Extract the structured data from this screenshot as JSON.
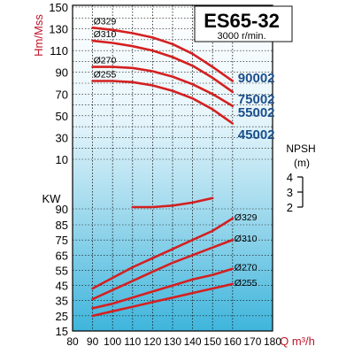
{
  "chart_data": [
    {
      "type": "line",
      "title": "ES65-32",
      "subtitle": "3000 r/min.",
      "ylabel": "Hm/Mss",
      "xlabel": "Q m³/h",
      "x_ticks": [
        80,
        90,
        100,
        110,
        120,
        130,
        140,
        150,
        160,
        170,
        180
      ],
      "y_ticks": [
        10,
        30,
        50,
        70,
        90,
        110,
        130,
        150
      ],
      "ylim": [
        0,
        150
      ],
      "xlim": [
        80,
        180
      ],
      "grid": true,
      "series": [
        {
          "name": "Ø329",
          "x": [
            90,
            100,
            110,
            120,
            130,
            140,
            150,
            160
          ],
          "y": [
            131,
            129,
            126,
            122,
            116,
            107,
            95,
            82
          ]
        },
        {
          "name": "Ø310",
          "x": [
            90,
            100,
            110,
            120,
            130,
            140,
            150,
            160
          ],
          "y": [
            119,
            117,
            114,
            110,
            104,
            96,
            85,
            72
          ]
        },
        {
          "name": "Ø270",
          "x": [
            90,
            100,
            110,
            120,
            130,
            140,
            150,
            160
          ],
          "y": [
            95,
            95,
            94,
            91,
            86,
            79,
            70,
            59
          ]
        },
        {
          "name": "Ø255",
          "x": [
            90,
            100,
            110,
            120,
            130,
            140,
            150,
            160
          ],
          "y": [
            82,
            82,
            81,
            78,
            73,
            66,
            56,
            43
          ]
        }
      ],
      "model_labels": [
        "90002",
        "75002",
        "55002",
        "45002"
      ]
    },
    {
      "type": "line",
      "ylabel": "NPSH",
      "yunit": "(m)",
      "y_ticks": [
        2,
        3,
        4
      ],
      "series": [
        {
          "name": "",
          "x": [
            110,
            120,
            130,
            140,
            150
          ],
          "y": [
            2.0,
            2.0,
            2.1,
            2.3,
            2.6
          ]
        }
      ]
    },
    {
      "type": "line",
      "ylabel": "KW",
      "y_ticks": [
        15,
        25,
        35,
        45,
        55,
        65,
        75,
        85,
        90
      ],
      "ylim": [
        15,
        90
      ],
      "series": [
        {
          "name": "Ø329",
          "x": [
            90,
            100,
            110,
            120,
            130,
            140,
            150,
            160
          ],
          "y": [
            43,
            50,
            57,
            63,
            69,
            75,
            81,
            87
          ]
        },
        {
          "name": "Ø310",
          "x": [
            90,
            100,
            110,
            120,
            130,
            140,
            150,
            160
          ],
          "y": [
            36,
            42,
            48,
            54,
            60,
            65,
            70,
            75
          ]
        },
        {
          "name": "Ø270",
          "x": [
            90,
            100,
            110,
            120,
            130,
            140,
            150,
            160
          ],
          "y": [
            30,
            33,
            37,
            41,
            45,
            49,
            52,
            56
          ]
        },
        {
          "name": "Ø255",
          "x": [
            90,
            100,
            110,
            120,
            130,
            140,
            150,
            160
          ],
          "y": [
            25,
            28,
            31,
            34,
            37,
            40,
            43,
            46
          ]
        }
      ]
    }
  ],
  "colors": {
    "curve": "#d42020",
    "grid": "#111111",
    "title": "#000000",
    "axis_label": "#c0142a",
    "model_label": "#1b4f8c",
    "bg_top": "#ffffff",
    "bg_bottom": "#3fb5dc"
  }
}
